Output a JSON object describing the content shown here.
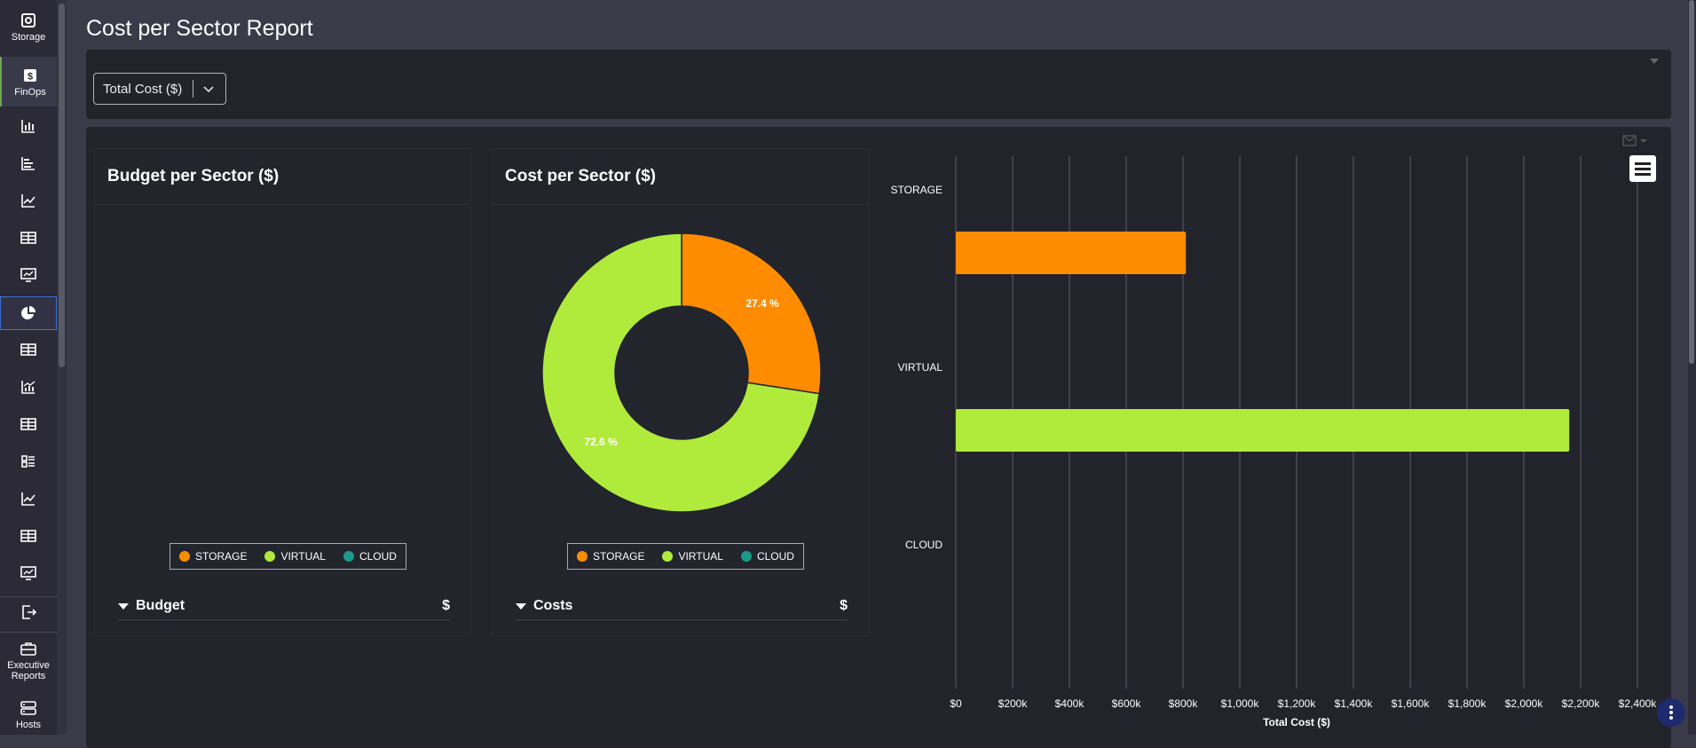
{
  "sidebar": {
    "items": [
      {
        "label": "Storage",
        "icon": "storage-icon"
      },
      {
        "label": "FinOps",
        "icon": "dollar-icon"
      },
      {
        "label": "",
        "icon": "bar-chart-icon"
      },
      {
        "label": "",
        "icon": "horizontal-bar-icon"
      },
      {
        "label": "",
        "icon": "line-chart-icon"
      },
      {
        "label": "",
        "icon": "table-icon"
      },
      {
        "label": "",
        "icon": "monitor-chart-icon"
      },
      {
        "label": "",
        "icon": "pie-chart-icon"
      },
      {
        "label": "",
        "icon": "table-icon"
      },
      {
        "label": "",
        "icon": "combo-chart-icon"
      },
      {
        "label": "",
        "icon": "table-icon"
      },
      {
        "label": "",
        "icon": "list-grid-icon"
      },
      {
        "label": "",
        "icon": "line-chart-icon"
      },
      {
        "label": "",
        "icon": "table-icon"
      },
      {
        "label": "",
        "icon": "monitor-chart-icon"
      },
      {
        "label": "",
        "icon": "export-icon"
      },
      {
        "label": "Executive Reports",
        "icon": "briefcase-icon"
      },
      {
        "label": "Hosts",
        "icon": "server-icon"
      }
    ]
  },
  "page": {
    "title": "Cost per Sector Report"
  },
  "filter": {
    "selected": "Total Cost ($)"
  },
  "colors": {
    "storage": "#ff8c00",
    "virtual": "#b0eb3c",
    "cloud": "#1a9c8c"
  },
  "budget_card": {
    "title": "Budget per Sector ($)",
    "legend": [
      "STORAGE",
      "VIRTUAL",
      "CLOUD"
    ],
    "table_header": "Budget",
    "table_unit": "$"
  },
  "cost_card": {
    "title": "Cost per Sector ($)",
    "legend": [
      "STORAGE",
      "VIRTUAL",
      "CLOUD"
    ],
    "table_header": "Costs",
    "table_unit": "$"
  },
  "chart_data": [
    {
      "type": "pie",
      "title": "Cost per Sector ($)",
      "categories": [
        "STORAGE",
        "VIRTUAL",
        "CLOUD"
      ],
      "values": [
        27.4,
        72.6,
        0
      ],
      "labels": [
        "27.4 %",
        "72.6 %",
        ""
      ],
      "donut": true
    },
    {
      "type": "bar",
      "orientation": "horizontal",
      "categories": [
        "STORAGE",
        "VIRTUAL",
        "CLOUD"
      ],
      "values": [
        810000,
        2160000,
        0
      ],
      "xlabel": "Total Cost ($)",
      "xlim": [
        0,
        2400000
      ],
      "ticks": [
        "$0",
        "$200k",
        "$400k",
        "$600k",
        "$800k",
        "$1,000k",
        "$1,200k",
        "$1,400k",
        "$1,600k",
        "$1,800k",
        "$2,000k",
        "$2,200k",
        "$2,400k"
      ],
      "grid": true
    }
  ]
}
